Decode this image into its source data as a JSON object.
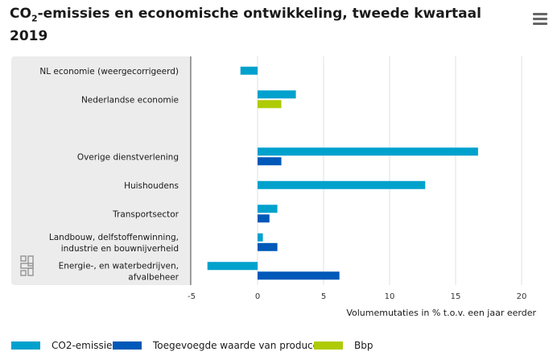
{
  "title": {
    "prefix": "CO",
    "subscript": "2",
    "rest": "-emissies en economische ontwikkeling, tweede kwartaal 2019"
  },
  "menu_icon": "hamburger-menu-icon",
  "logo_icon": "cbs-logo-icon",
  "colors": {
    "co2": "#00a1cd",
    "added_value": "#0058b8",
    "bbp": "#afcb05",
    "panel_bg": "#ececec",
    "grid": "#e0e0e0"
  },
  "chart_data": {
    "type": "bar",
    "orientation": "horizontal",
    "xlabel": "Volumemutaties in % t.o.v. een jaar eerder",
    "xlim": [
      -5,
      22
    ],
    "xticks": [
      -5,
      0,
      5,
      10,
      15,
      20
    ],
    "grid": true,
    "legend_position": "bottom",
    "categories": [
      [
        "NL economie (weergecorrigeerd)"
      ],
      [
        "Nederlandse economie"
      ],
      [
        ""
      ],
      [
        "Overige dienstverlening"
      ],
      [
        "Huishoudens"
      ],
      [
        "Transportsector"
      ],
      [
        "Landbouw, delfstoffenwinning,",
        "industrie en bouwnijverheid"
      ],
      [
        "Energie-, en waterbedrijven,",
        "afvalbeheer"
      ]
    ],
    "series": [
      {
        "name": "CO2-emissie",
        "values": [
          -1.3,
          2.9,
          null,
          16.7,
          12.7,
          1.5,
          0.4,
          -3.8
        ]
      },
      {
        "name": "Toegevoegde waarde van producenten",
        "values": [
          null,
          null,
          null,
          1.8,
          null,
          0.9,
          1.5,
          6.2
        ]
      },
      {
        "name": "Bbp",
        "values": [
          null,
          1.8,
          null,
          null,
          null,
          null,
          null,
          null
        ]
      }
    ]
  }
}
